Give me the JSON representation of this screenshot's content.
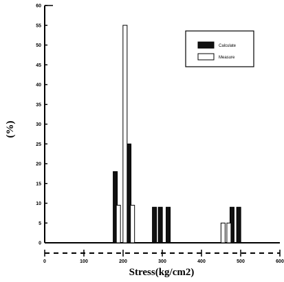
{
  "chart_data": {
    "type": "bar",
    "title": "",
    "xlabel": "Stress(kg/cm2)",
    "ylabel": "(%)",
    "xlim": [
      0,
      600
    ],
    "ylim": [
      0,
      60
    ],
    "x_ticks": [
      "0",
      "100",
      "200",
      "300",
      "400",
      "500",
      "600"
    ],
    "y_ticks": [
      "0",
      "5",
      "10",
      "15",
      "20",
      "25",
      "30",
      "35",
      "40",
      "45",
      "50",
      "55",
      "60"
    ],
    "legend_position": "top-right",
    "grid": false,
    "colors": {
      "calculate": "#111111",
      "measure": "#ffffff"
    },
    "series": [
      {
        "name": "Calculate",
        "points": [
          {
            "x": 180,
            "y": 18
          },
          {
            "x": 215,
            "y": 25
          },
          {
            "x": 280,
            "y": 9
          },
          {
            "x": 295,
            "y": 9
          },
          {
            "x": 315,
            "y": 9
          },
          {
            "x": 478,
            "y": 9
          },
          {
            "x": 495,
            "y": 9
          }
        ]
      },
      {
        "name": "Measure",
        "points": [
          {
            "x": 188,
            "y": 9.5
          },
          {
            "x": 205,
            "y": 55
          },
          {
            "x": 224,
            "y": 9.5
          },
          {
            "x": 455,
            "y": 5
          },
          {
            "x": 470,
            "y": 5
          }
        ]
      }
    ]
  }
}
